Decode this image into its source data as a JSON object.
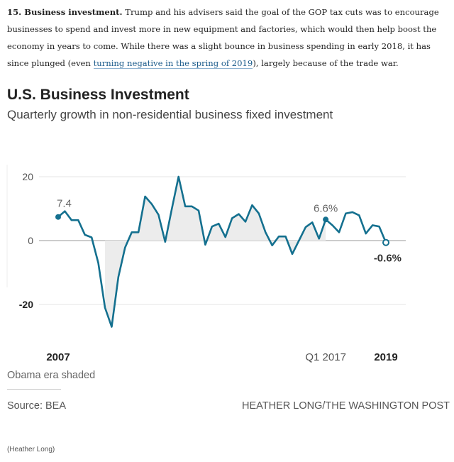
{
  "article": {
    "lead": "15. Business investment.",
    "text_before_link": " Trump and his advisers said the goal of the GOP tax cuts was to encourage businesses to spend and invest more in new equipment and factories, which would then help boost the economy in years to come. While there was a slight bounce in business spending in early 2018, it has since plunged (even ",
    "link": "turning negative in the spring of 2019",
    "text_after_link": "), largely because of the trade war."
  },
  "chart_data": {
    "type": "line",
    "title": "U.S. Business Investment",
    "subtitle": "Quarterly growth in non-residential business fixed investment",
    "xlabel": "",
    "ylabel": "",
    "ylim": [
      -28,
      22
    ],
    "yticks": [
      20,
      0,
      -20
    ],
    "ytick_labels": [
      "20",
      "0",
      "-20"
    ],
    "x_tick_labels": [
      {
        "index": 0,
        "label": "2007"
      },
      {
        "index": 40,
        "label": "Q1 2017"
      },
      {
        "index": 49,
        "label": "2019"
      }
    ],
    "x_start": "2007 Q1",
    "x_end": "2019 Q2",
    "shaded_range": [
      7,
      40
    ],
    "shaded_label": "Obama era shaded",
    "series": [
      {
        "name": "Quarterly growth (%)",
        "color": "#14708f",
        "values": [
          7.4,
          9.2,
          6.4,
          6.4,
          1.8,
          1.0,
          -7.0,
          -21.0,
          -27.0,
          -11.4,
          -2.2,
          2.6,
          2.6,
          13.8,
          11.4,
          8.1,
          -0.4,
          10.0,
          20.0,
          10.7,
          10.7,
          9.4,
          -1.3,
          4.4,
          5.3,
          1.1,
          7.0,
          8.3,
          5.9,
          11.1,
          8.5,
          2.6,
          -1.5,
          1.3,
          1.3,
          -4.2,
          0.0,
          4.2,
          5.7,
          0.6,
          6.6,
          4.8,
          2.6,
          8.5,
          8.9,
          7.9,
          2.2,
          4.8,
          4.4,
          -0.6
        ]
      }
    ],
    "annotations": [
      {
        "index": 0,
        "label": "7.4"
      },
      {
        "index": 40,
        "label": "6.6%"
      },
      {
        "index": 49,
        "label": "-0.6%"
      }
    ],
    "grid": true
  },
  "footer": {
    "source": "Source: BEA",
    "credit": "HEATHER LONG/THE WASHINGTON POST",
    "caption": "(Heather Long)"
  }
}
